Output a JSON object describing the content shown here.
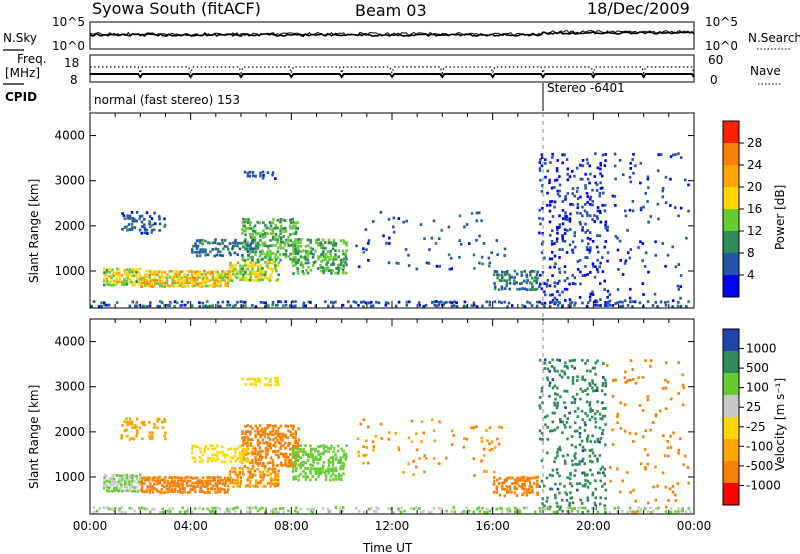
{
  "header": {
    "title": "Syowa South (fitACF)",
    "beam": "Beam 03",
    "date": "18/Dec/2009"
  },
  "noise_panel": {
    "left_label": "N.Sky",
    "left_ticks": [
      "10^5",
      "10^0"
    ],
    "right_label": "N.Search",
    "right_ticks": [
      "10^5",
      "10^0"
    ]
  },
  "freq_panel": {
    "left_label_1": "Freq.",
    "left_label_2": "[MHz]",
    "left_ticks": [
      "18",
      "8"
    ],
    "right_label": "Nave",
    "right_ticks": [
      "60",
      "0"
    ]
  },
  "cpid": {
    "label": "CPID",
    "mode1": "normal (fast stereo) 153",
    "mode2": "Stereo -6401",
    "switch_hour": 18.0
  },
  "colors": {
    "power_scale": [
      "#0000ff",
      "#2255aa",
      "#2e8b57",
      "#66cc33",
      "#ffd700",
      "#ffa500",
      "#ff7f00",
      "#ff2000"
    ],
    "velocity_scale": [
      "#2244aa",
      "#2e8b57",
      "#66cc33",
      "#c8c8c8",
      "#ffd700",
      "#ffa500",
      "#ff7f00",
      "#ff0000"
    ]
  },
  "chart_data": [
    {
      "type": "heatmap",
      "panel": "power",
      "xlabel": "",
      "ylabel": "Slant Range [km]",
      "xlim": [
        0,
        24
      ],
      "ylim": [
        180,
        4500
      ],
      "yticks": [
        1000,
        2000,
        3000,
        4000
      ],
      "colorbar": {
        "label": "Power [dB]",
        "ticks": [
          4,
          8,
          12,
          16,
          20,
          24,
          28
        ],
        "range": [
          0,
          32
        ]
      },
      "regions": [
        {
          "x0": 0.5,
          "x1": 2.0,
          "y0": 650,
          "y1": 1050,
          "value": 16,
          "density": 0.85
        },
        {
          "x0": 2.0,
          "x1": 5.5,
          "y0": 620,
          "y1": 1000,
          "value": 20,
          "density": 0.85
        },
        {
          "x0": 5.5,
          "x1": 7.5,
          "y0": 750,
          "y1": 1200,
          "value": 16,
          "density": 0.7
        },
        {
          "x0": 6.0,
          "x1": 8.3,
          "y0": 1200,
          "y1": 2150,
          "value": 12,
          "density": 0.6
        },
        {
          "x0": 8.0,
          "x1": 10.2,
          "y0": 900,
          "y1": 1700,
          "value": 12,
          "density": 0.55
        },
        {
          "x0": 1.2,
          "x1": 3.0,
          "y0": 1800,
          "y1": 2300,
          "value": 6,
          "density": 0.35
        },
        {
          "x0": 4.0,
          "x1": 6.5,
          "y0": 1300,
          "y1": 1700,
          "value": 8,
          "density": 0.45
        },
        {
          "x0": 6.0,
          "x1": 7.5,
          "y0": 3000,
          "y1": 3200,
          "value": 6,
          "density": 0.5
        },
        {
          "x0": 10.5,
          "x1": 16.5,
          "y0": 1000,
          "y1": 2300,
          "value": 6,
          "density": 0.06
        },
        {
          "x0": 16.0,
          "x1": 17.8,
          "y0": 550,
          "y1": 1000,
          "value": 8,
          "density": 0.6
        },
        {
          "x0": 17.8,
          "x1": 20.5,
          "y0": 180,
          "y1": 3600,
          "value": 4,
          "density": 0.22
        },
        {
          "x0": 20.5,
          "x1": 23.8,
          "y0": 180,
          "y1": 3600,
          "value": 5,
          "density": 0.05
        },
        {
          "x0": 0.0,
          "x1": 24.0,
          "y0": 180,
          "y1": 330,
          "value": 6,
          "density": 0.45
        }
      ]
    },
    {
      "type": "heatmap",
      "panel": "velocity",
      "xlabel": "Time UT",
      "ylabel": "Slant Range [km]",
      "xlim": [
        0,
        24
      ],
      "xticks": [
        "00:00",
        "04:00",
        "08:00",
        "12:00",
        "16:00",
        "20:00",
        "00:00"
      ],
      "ylim": [
        180,
        4500
      ],
      "yticks": [
        1000,
        2000,
        3000,
        4000
      ],
      "colorbar": {
        "label": "Velocity [m s⁻¹]",
        "ticks": [
          "1000",
          "500",
          "100",
          "25",
          "-25",
          "-100",
          "-500",
          "-1000"
        ]
      },
      "regions": [
        {
          "x0": 0.5,
          "x1": 2.0,
          "y0": 650,
          "y1": 1050,
          "value": 100,
          "density": 0.85
        },
        {
          "x0": 2.0,
          "x1": 5.5,
          "y0": 620,
          "y1": 1000,
          "value": -150,
          "density": 0.85
        },
        {
          "x0": 5.5,
          "x1": 7.5,
          "y0": 750,
          "y1": 1200,
          "value": -100,
          "density": 0.7
        },
        {
          "x0": 6.0,
          "x1": 8.3,
          "y0": 1200,
          "y1": 2150,
          "value": -250,
          "density": 0.6
        },
        {
          "x0": 8.0,
          "x1": 10.2,
          "y0": 900,
          "y1": 1700,
          "value": 150,
          "density": 0.55
        },
        {
          "x0": 1.2,
          "x1": 3.0,
          "y0": 1800,
          "y1": 2300,
          "value": -60,
          "density": 0.35
        },
        {
          "x0": 4.0,
          "x1": 6.5,
          "y0": 1300,
          "y1": 1700,
          "value": 0,
          "density": 0.45
        },
        {
          "x0": 6.0,
          "x1": 7.5,
          "y0": 3000,
          "y1": 3200,
          "value": 0,
          "density": 0.5
        },
        {
          "x0": 10.5,
          "x1": 16.5,
          "y0": 1000,
          "y1": 2300,
          "value": -100,
          "density": 0.06
        },
        {
          "x0": 16.0,
          "x1": 17.8,
          "y0": 550,
          "y1": 1000,
          "value": -300,
          "density": 0.6
        },
        {
          "x0": 17.8,
          "x1": 20.5,
          "y0": 180,
          "y1": 3600,
          "value": 800,
          "density": 0.22
        },
        {
          "x0": 20.5,
          "x1": 23.8,
          "y0": 180,
          "y1": 3600,
          "value": -200,
          "density": 0.05
        },
        {
          "x0": 0.0,
          "x1": 24.0,
          "y0": 180,
          "y1": 330,
          "value": 100,
          "density": 0.45
        }
      ]
    }
  ]
}
